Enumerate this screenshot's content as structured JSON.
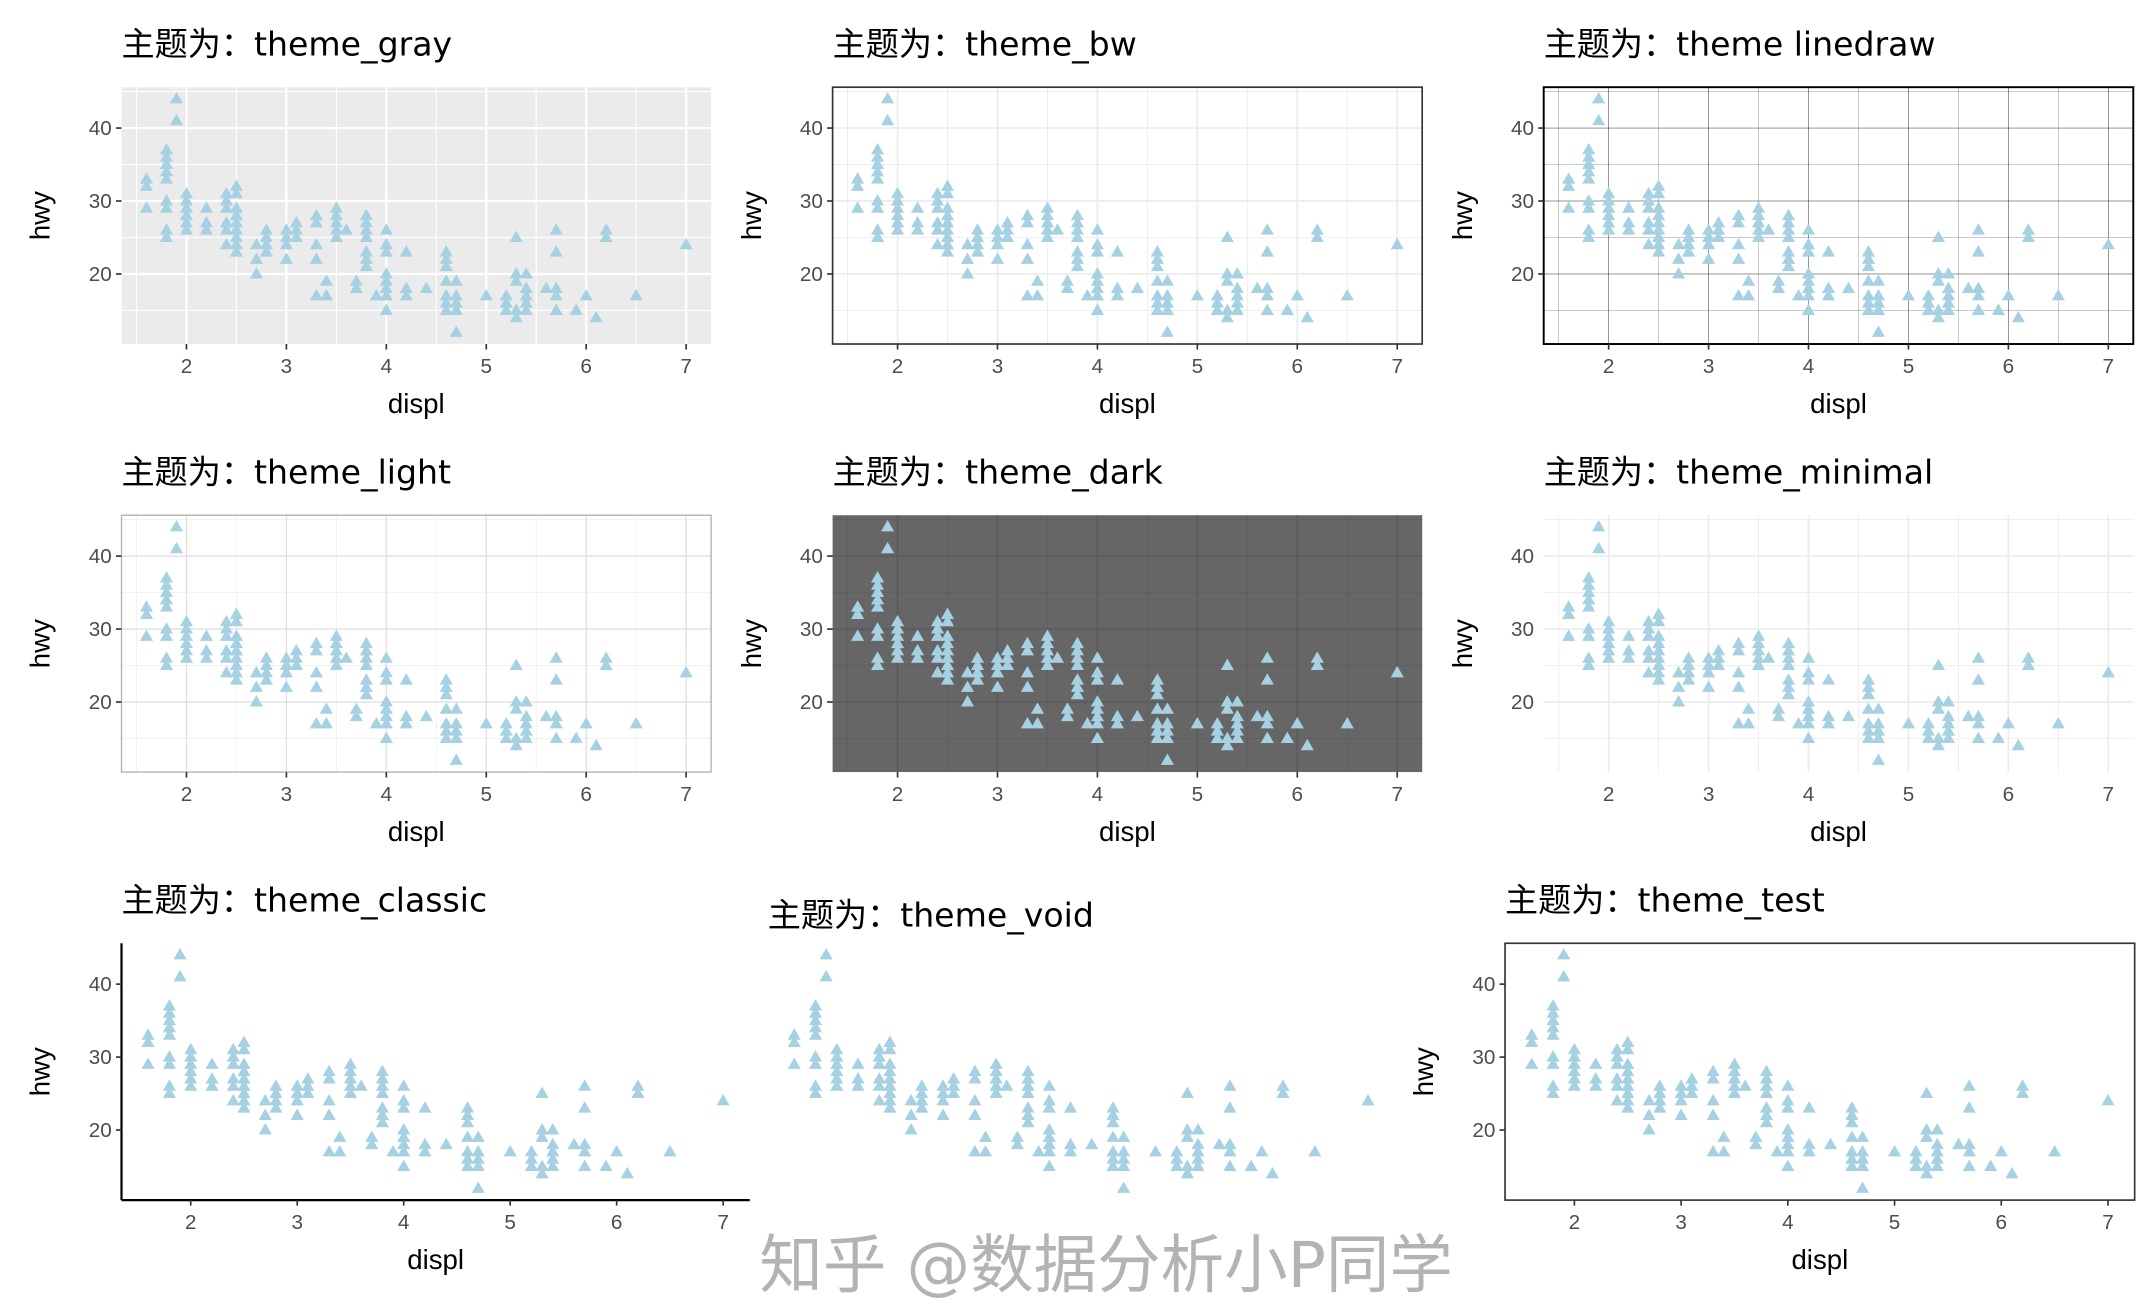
{
  "chart_data": [
    {
      "type": "scatter",
      "title": "主题为：theme_gray",
      "theme": "gray",
      "xlabel": "displ",
      "ylabel": "hwy"
    },
    {
      "type": "scatter",
      "title": "主题为：theme_bw",
      "theme": "bw",
      "xlabel": "displ",
      "ylabel": "hwy"
    },
    {
      "type": "scatter",
      "title": "主题为：theme linedraw",
      "theme": "linedraw",
      "xlabel": "displ",
      "ylabel": "hwy"
    },
    {
      "type": "scatter",
      "title": "主题为：theme_light",
      "theme": "light",
      "xlabel": "displ",
      "ylabel": "hwy"
    },
    {
      "type": "scatter",
      "title": "主题为：theme_dark",
      "theme": "dark",
      "xlabel": "displ",
      "ylabel": "hwy"
    },
    {
      "type": "scatter",
      "title": "主题为：theme_minimal",
      "theme": "minimal",
      "xlabel": "displ",
      "ylabel": "hwy"
    },
    {
      "type": "scatter",
      "title": "主题为：theme_classic",
      "theme": "classic",
      "xlabel": "displ",
      "ylabel": "hwy"
    },
    {
      "type": "scatter",
      "title": "主题为：theme_void",
      "theme": "void",
      "xlabel": "",
      "ylabel": ""
    },
    {
      "type": "scatter",
      "title": "主题为：theme_test",
      "theme": "test",
      "xlabel": "displ",
      "ylabel": "hwy"
    }
  ],
  "shared": {
    "marker": "triangle",
    "point_color": "#a6d1e2",
    "xlim": [
      1.35,
      7.25
    ],
    "ylim": [
      10.4,
      45.6
    ],
    "x_ticks": [
      2,
      3,
      4,
      5,
      6,
      7
    ],
    "y_ticks": [
      20,
      30,
      40
    ],
    "points": [
      [
        1.6,
        33
      ],
      [
        1.6,
        32
      ],
      [
        1.6,
        29
      ],
      [
        1.8,
        37
      ],
      [
        1.8,
        36
      ],
      [
        1.8,
        35
      ],
      [
        1.8,
        34
      ],
      [
        1.8,
        33
      ],
      [
        1.8,
        30
      ],
      [
        1.8,
        29
      ],
      [
        1.8,
        26
      ],
      [
        1.8,
        25
      ],
      [
        1.9,
        44
      ],
      [
        1.9,
        41
      ],
      [
        2.0,
        31
      ],
      [
        2.0,
        30
      ],
      [
        2.0,
        29
      ],
      [
        2.0,
        28
      ],
      [
        2.0,
        27
      ],
      [
        2.0,
        26
      ],
      [
        2.2,
        29
      ],
      [
        2.2,
        27
      ],
      [
        2.2,
        26
      ],
      [
        2.4,
        31
      ],
      [
        2.4,
        30
      ],
      [
        2.4,
        29
      ],
      [
        2.4,
        27
      ],
      [
        2.4,
        26
      ],
      [
        2.4,
        24
      ],
      [
        2.5,
        32
      ],
      [
        2.5,
        31
      ],
      [
        2.5,
        29
      ],
      [
        2.5,
        28
      ],
      [
        2.5,
        27
      ],
      [
        2.5,
        26
      ],
      [
        2.5,
        25
      ],
      [
        2.5,
        24
      ],
      [
        2.5,
        23
      ],
      [
        2.7,
        24
      ],
      [
        2.7,
        22
      ],
      [
        2.7,
        20
      ],
      [
        2.8,
        26
      ],
      [
        2.8,
        25
      ],
      [
        2.8,
        24
      ],
      [
        2.8,
        23
      ],
      [
        3.0,
        26
      ],
      [
        3.0,
        25
      ],
      [
        3.0,
        24
      ],
      [
        3.0,
        22
      ],
      [
        3.1,
        27
      ],
      [
        3.1,
        26
      ],
      [
        3.1,
        25
      ],
      [
        3.3,
        28
      ],
      [
        3.3,
        27
      ],
      [
        3.3,
        24
      ],
      [
        3.3,
        22
      ],
      [
        3.3,
        17
      ],
      [
        3.4,
        19
      ],
      [
        3.4,
        17
      ],
      [
        3.5,
        29
      ],
      [
        3.5,
        28
      ],
      [
        3.5,
        27
      ],
      [
        3.5,
        26
      ],
      [
        3.5,
        25
      ],
      [
        3.6,
        26
      ],
      [
        3.7,
        19
      ],
      [
        3.7,
        18
      ],
      [
        3.8,
        28
      ],
      [
        3.8,
        27
      ],
      [
        3.8,
        26
      ],
      [
        3.8,
        25
      ],
      [
        3.8,
        23
      ],
      [
        3.8,
        22
      ],
      [
        3.8,
        21
      ],
      [
        3.9,
        17
      ],
      [
        4.0,
        26
      ],
      [
        4.0,
        24
      ],
      [
        4.0,
        23
      ],
      [
        4.0,
        20
      ],
      [
        4.0,
        19
      ],
      [
        4.0,
        18
      ],
      [
        4.0,
        17
      ],
      [
        4.0,
        15
      ],
      [
        4.2,
        23
      ],
      [
        4.2,
        18
      ],
      [
        4.2,
        17
      ],
      [
        4.4,
        18
      ],
      [
        4.6,
        23
      ],
      [
        4.6,
        22
      ],
      [
        4.6,
        21
      ],
      [
        4.6,
        19
      ],
      [
        4.6,
        17
      ],
      [
        4.6,
        16
      ],
      [
        4.6,
        15
      ],
      [
        4.7,
        19
      ],
      [
        4.7,
        17
      ],
      [
        4.7,
        16
      ],
      [
        4.7,
        15
      ],
      [
        4.7,
        12
      ],
      [
        5.0,
        17
      ],
      [
        5.2,
        17
      ],
      [
        5.2,
        16
      ],
      [
        5.2,
        15
      ],
      [
        5.3,
        25
      ],
      [
        5.3,
        20
      ],
      [
        5.3,
        19
      ],
      [
        5.3,
        15
      ],
      [
        5.3,
        14
      ],
      [
        5.4,
        20
      ],
      [
        5.4,
        18
      ],
      [
        5.4,
        17
      ],
      [
        5.4,
        16
      ],
      [
        5.4,
        15
      ],
      [
        5.6,
        18
      ],
      [
        5.7,
        26
      ],
      [
        5.7,
        23
      ],
      [
        5.7,
        18
      ],
      [
        5.7,
        17
      ],
      [
        5.7,
        15
      ],
      [
        5.9,
        15
      ],
      [
        6.0,
        17
      ],
      [
        6.1,
        14
      ],
      [
        6.2,
        26
      ],
      [
        6.2,
        25
      ],
      [
        6.5,
        17
      ],
      [
        7.0,
        24
      ]
    ]
  },
  "watermark": "知乎 @数据分析小P同学"
}
